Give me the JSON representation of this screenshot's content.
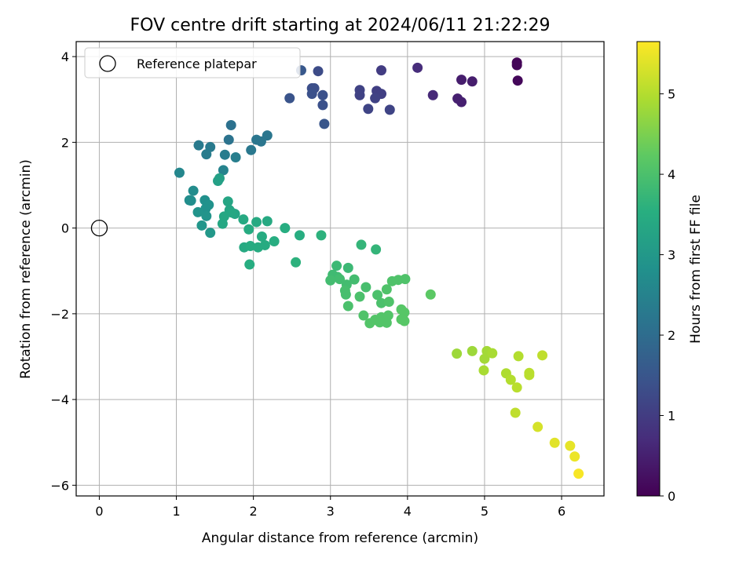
{
  "chart_data": {
    "type": "scatter",
    "title": "FOV centre drift starting at 2024/06/11 21:22:29",
    "xlabel": "Angular distance from reference (arcmin)",
    "ylabel": "Rotation from reference (arcmin)",
    "colorbar_label": "Hours from first FF file",
    "xlim": [
      -0.3,
      6.55
    ],
    "ylim": [
      -6.25,
      4.35
    ],
    "clim": [
      0,
      5.65
    ],
    "xticks": [
      0,
      1,
      2,
      3,
      4,
      5,
      6
    ],
    "yticks": [
      -6,
      -4,
      -2,
      0,
      2,
      4
    ],
    "cticks": [
      0,
      1,
      2,
      3,
      4,
      5
    ],
    "colormap": "viridis",
    "grid": true,
    "legend": {
      "label": "Reference platepar",
      "position": "top-left"
    },
    "reference_point": {
      "x": 0,
      "y": 0
    },
    "points": [
      {
        "x": 5.42,
        "y": 3.86,
        "c": 0.05
      },
      {
        "x": 5.42,
        "y": 3.8,
        "c": 0.08
      },
      {
        "x": 5.43,
        "y": 3.44,
        "c": 0.1
      },
      {
        "x": 4.7,
        "y": 3.46,
        "c": 0.45
      },
      {
        "x": 4.84,
        "y": 3.42,
        "c": 0.45
      },
      {
        "x": 4.65,
        "y": 3.02,
        "c": 0.5
      },
      {
        "x": 4.7,
        "y": 2.94,
        "c": 0.5
      },
      {
        "x": 4.33,
        "y": 3.1,
        "c": 0.65
      },
      {
        "x": 4.13,
        "y": 3.74,
        "c": 0.7
      },
      {
        "x": 3.66,
        "y": 3.68,
        "c": 1.0
      },
      {
        "x": 3.6,
        "y": 3.2,
        "c": 1.05
      },
      {
        "x": 3.66,
        "y": 3.13,
        "c": 1.05
      },
      {
        "x": 3.38,
        "y": 3.22,
        "c": 1.1
      },
      {
        "x": 3.38,
        "y": 3.1,
        "c": 1.1
      },
      {
        "x": 3.58,
        "y": 3.03,
        "c": 1.1
      },
      {
        "x": 3.49,
        "y": 2.78,
        "c": 1.15
      },
      {
        "x": 3.77,
        "y": 2.76,
        "c": 1.15
      },
      {
        "x": 2.84,
        "y": 3.66,
        "c": 1.3
      },
      {
        "x": 2.76,
        "y": 3.26,
        "c": 1.35
      },
      {
        "x": 2.79,
        "y": 3.26,
        "c": 1.35
      },
      {
        "x": 2.76,
        "y": 3.13,
        "c": 1.4
      },
      {
        "x": 2.9,
        "y": 3.1,
        "c": 1.4
      },
      {
        "x": 2.9,
        "y": 2.87,
        "c": 1.4
      },
      {
        "x": 2.47,
        "y": 3.03,
        "c": 1.45
      },
      {
        "x": 2.92,
        "y": 2.43,
        "c": 1.5
      },
      {
        "x": 2.62,
        "y": 3.68,
        "c": 1.55
      },
      {
        "x": 1.71,
        "y": 2.4,
        "c": 2.1
      },
      {
        "x": 1.68,
        "y": 2.06,
        "c": 2.15
      },
      {
        "x": 2.18,
        "y": 2.16,
        "c": 2.2
      },
      {
        "x": 2.04,
        "y": 2.06,
        "c": 2.2
      },
      {
        "x": 2.1,
        "y": 2.02,
        "c": 2.2
      },
      {
        "x": 1.97,
        "y": 1.82,
        "c": 2.25
      },
      {
        "x": 1.29,
        "y": 1.93,
        "c": 2.3
      },
      {
        "x": 1.44,
        "y": 1.89,
        "c": 2.3
      },
      {
        "x": 1.39,
        "y": 1.72,
        "c": 2.35
      },
      {
        "x": 1.63,
        "y": 1.71,
        "c": 2.35
      },
      {
        "x": 1.77,
        "y": 1.65,
        "c": 2.4
      },
      {
        "x": 1.61,
        "y": 1.35,
        "c": 2.5
      },
      {
        "x": 1.04,
        "y": 1.29,
        "c": 2.6
      },
      {
        "x": 1.22,
        "y": 0.87,
        "c": 2.7
      },
      {
        "x": 1.17,
        "y": 0.65,
        "c": 2.7
      },
      {
        "x": 1.19,
        "y": 0.64,
        "c": 2.75
      },
      {
        "x": 1.37,
        "y": 0.65,
        "c": 2.8
      },
      {
        "x": 1.42,
        "y": 0.54,
        "c": 2.85
      },
      {
        "x": 1.38,
        "y": 0.45,
        "c": 2.85
      },
      {
        "x": 1.28,
        "y": 0.37,
        "c": 2.9
      },
      {
        "x": 1.39,
        "y": 0.28,
        "c": 2.9
      },
      {
        "x": 1.33,
        "y": 0.06,
        "c": 2.95
      },
      {
        "x": 1.44,
        "y": -0.11,
        "c": 3.0
      },
      {
        "x": 1.56,
        "y": 1.16,
        "c": 3.2
      },
      {
        "x": 1.54,
        "y": 1.1,
        "c": 3.2
      },
      {
        "x": 1.67,
        "y": 0.62,
        "c": 3.3
      },
      {
        "x": 1.69,
        "y": 0.42,
        "c": 3.3
      },
      {
        "x": 1.76,
        "y": 0.33,
        "c": 3.3
      },
      {
        "x": 1.62,
        "y": 0.27,
        "c": 3.35
      },
      {
        "x": 1.72,
        "y": 0.36,
        "c": 3.35
      },
      {
        "x": 1.6,
        "y": 0.1,
        "c": 3.35
      },
      {
        "x": 1.87,
        "y": 0.2,
        "c": 3.4
      },
      {
        "x": 2.04,
        "y": 0.14,
        "c": 3.4
      },
      {
        "x": 2.18,
        "y": 0.16,
        "c": 3.4
      },
      {
        "x": 1.94,
        "y": -0.03,
        "c": 3.45
      },
      {
        "x": 2.11,
        "y": -0.2,
        "c": 3.45
      },
      {
        "x": 2.41,
        "y": 0.0,
        "c": 3.5
      },
      {
        "x": 2.6,
        "y": -0.17,
        "c": 3.5
      },
      {
        "x": 1.88,
        "y": -0.45,
        "c": 3.4
      },
      {
        "x": 1.96,
        "y": -0.42,
        "c": 3.45
      },
      {
        "x": 2.06,
        "y": -0.45,
        "c": 3.45
      },
      {
        "x": 2.15,
        "y": -0.4,
        "c": 3.45
      },
      {
        "x": 2.27,
        "y": -0.31,
        "c": 3.5
      },
      {
        "x": 1.95,
        "y": -0.85,
        "c": 3.5
      },
      {
        "x": 2.55,
        "y": -0.8,
        "c": 3.6
      },
      {
        "x": 2.88,
        "y": -0.17,
        "c": 3.6
      },
      {
        "x": 3.4,
        "y": -0.39,
        "c": 3.7
      },
      {
        "x": 3.59,
        "y": -0.5,
        "c": 3.7
      },
      {
        "x": 3.08,
        "y": -0.88,
        "c": 3.8
      },
      {
        "x": 3.23,
        "y": -0.93,
        "c": 3.8
      },
      {
        "x": 3.03,
        "y": -1.09,
        "c": 3.85
      },
      {
        "x": 3.09,
        "y": -1.14,
        "c": 3.85
      },
      {
        "x": 3.0,
        "y": -1.22,
        "c": 3.9
      },
      {
        "x": 3.12,
        "y": -1.19,
        "c": 3.9
      },
      {
        "x": 3.31,
        "y": -1.2,
        "c": 3.9
      },
      {
        "x": 3.21,
        "y": -1.32,
        "c": 3.9
      },
      {
        "x": 3.46,
        "y": -1.38,
        "c": 3.95
      },
      {
        "x": 3.19,
        "y": -1.46,
        "c": 3.95
      },
      {
        "x": 3.2,
        "y": -1.55,
        "c": 3.95
      },
      {
        "x": 3.38,
        "y": -1.6,
        "c": 4.0
      },
      {
        "x": 3.23,
        "y": -1.82,
        "c": 4.0
      },
      {
        "x": 3.61,
        "y": -1.56,
        "c": 4.0
      },
      {
        "x": 3.66,
        "y": -1.75,
        "c": 4.0
      },
      {
        "x": 3.73,
        "y": -1.43,
        "c": 4.05
      },
      {
        "x": 3.76,
        "y": -1.72,
        "c": 4.05
      },
      {
        "x": 3.8,
        "y": -1.24,
        "c": 4.05
      },
      {
        "x": 3.88,
        "y": -1.21,
        "c": 4.05
      },
      {
        "x": 3.97,
        "y": -1.19,
        "c": 4.05
      },
      {
        "x": 3.43,
        "y": -2.04,
        "c": 4.05
      },
      {
        "x": 3.51,
        "y": -2.22,
        "c": 4.1
      },
      {
        "x": 3.58,
        "y": -2.14,
        "c": 4.1
      },
      {
        "x": 3.66,
        "y": -2.08,
        "c": 4.1
      },
      {
        "x": 3.64,
        "y": -2.2,
        "c": 4.1
      },
      {
        "x": 3.75,
        "y": -2.04,
        "c": 4.1
      },
      {
        "x": 3.73,
        "y": -2.21,
        "c": 4.1
      },
      {
        "x": 3.92,
        "y": -1.9,
        "c": 4.15
      },
      {
        "x": 3.96,
        "y": -1.97,
        "c": 4.15
      },
      {
        "x": 3.92,
        "y": -2.13,
        "c": 4.15
      },
      {
        "x": 3.96,
        "y": -2.17,
        "c": 4.15
      },
      {
        "x": 4.3,
        "y": -1.55,
        "c": 4.2
      },
      {
        "x": 4.64,
        "y": -2.93,
        "c": 4.8
      },
      {
        "x": 4.84,
        "y": -2.87,
        "c": 4.8
      },
      {
        "x": 5.03,
        "y": -2.87,
        "c": 4.85
      },
      {
        "x": 5.0,
        "y": -3.05,
        "c": 4.85
      },
      {
        "x": 5.1,
        "y": -2.92,
        "c": 4.9
      },
      {
        "x": 4.99,
        "y": -3.32,
        "c": 4.9
      },
      {
        "x": 5.28,
        "y": -3.39,
        "c": 4.95
      },
      {
        "x": 5.44,
        "y": -2.99,
        "c": 5.0
      },
      {
        "x": 5.34,
        "y": -3.54,
        "c": 5.0
      },
      {
        "x": 5.42,
        "y": -3.72,
        "c": 5.05
      },
      {
        "x": 5.58,
        "y": -3.38,
        "c": 5.05
      },
      {
        "x": 5.58,
        "y": -3.43,
        "c": 5.05
      },
      {
        "x": 5.75,
        "y": -2.97,
        "c": 5.1
      },
      {
        "x": 5.4,
        "y": -4.31,
        "c": 5.1
      },
      {
        "x": 5.69,
        "y": -4.64,
        "c": 5.3
      },
      {
        "x": 5.91,
        "y": -5.01,
        "c": 5.4
      },
      {
        "x": 6.11,
        "y": -5.08,
        "c": 5.45
      },
      {
        "x": 6.17,
        "y": -5.33,
        "c": 5.5
      },
      {
        "x": 6.22,
        "y": -5.73,
        "c": 5.6
      }
    ]
  }
}
